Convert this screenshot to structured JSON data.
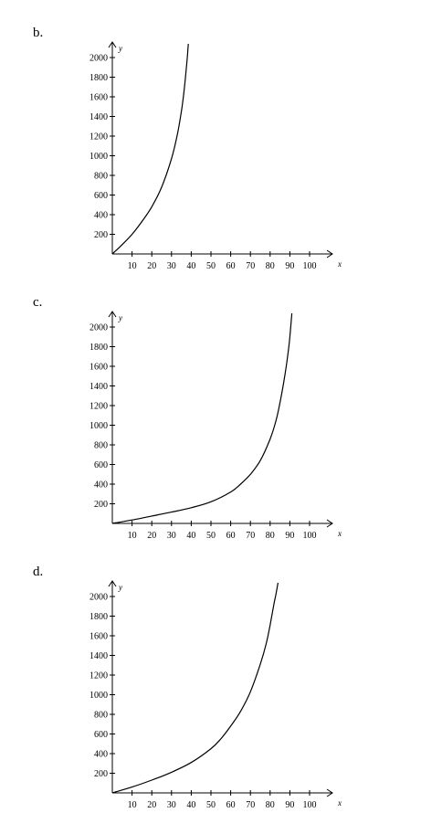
{
  "chart_data": [
    {
      "label": "b.",
      "type": "line",
      "xlabel": "x",
      "ylabel": "y",
      "xlim": [
        0,
        110
      ],
      "ylim": [
        0,
        2000
      ],
      "x_ticks": [
        10,
        20,
        30,
        40,
        50,
        60,
        70,
        80,
        90,
        100
      ],
      "y_ticks": [
        200,
        400,
        600,
        800,
        1000,
        1200,
        1400,
        1600,
        1800,
        2000
      ],
      "grid": false,
      "series": [
        {
          "x": [
            0,
            5,
            10,
            15,
            20,
            25,
            30,
            33,
            35,
            36,
            37,
            38,
            38.5
          ],
          "y": [
            0,
            95,
            200,
            330,
            480,
            680,
            970,
            1220,
            1450,
            1600,
            1780,
            2000,
            2140
          ]
        }
      ]
    },
    {
      "label": "c.",
      "type": "line",
      "xlabel": "x",
      "ylabel": "y",
      "xlim": [
        0,
        110
      ],
      "ylim": [
        0,
        2000
      ],
      "x_ticks": [
        10,
        20,
        30,
        40,
        50,
        60,
        70,
        80,
        90,
        100
      ],
      "y_ticks": [
        200,
        400,
        600,
        800,
        1000,
        1200,
        1400,
        1600,
        1800,
        2000
      ],
      "grid": false,
      "series": [
        {
          "x": [
            0,
            10,
            20,
            30,
            40,
            50,
            60,
            65,
            70,
            75,
            80,
            83,
            85,
            87,
            89,
            90,
            91
          ],
          "y": [
            0,
            35,
            75,
            115,
            160,
            220,
            320,
            400,
            500,
            640,
            860,
            1050,
            1230,
            1450,
            1720,
            1900,
            2140
          ]
        }
      ]
    },
    {
      "label": "d.",
      "type": "line",
      "xlabel": "x",
      "ylabel": "y",
      "xlim": [
        0,
        110
      ],
      "ylim": [
        0,
        2000
      ],
      "x_ticks": [
        10,
        20,
        30,
        40,
        50,
        60,
        70,
        80,
        90,
        100
      ],
      "y_ticks": [
        200,
        400,
        600,
        800,
        1000,
        1200,
        1400,
        1600,
        1800,
        2000
      ],
      "grid": false,
      "series": [
        {
          "x": [
            0,
            10,
            20,
            30,
            40,
            50,
            55,
            60,
            65,
            70,
            75,
            78,
            80,
            82,
            83,
            84
          ],
          "y": [
            0,
            60,
            130,
            210,
            310,
            450,
            550,
            680,
            830,
            1030,
            1310,
            1520,
            1710,
            1930,
            2030,
            2140
          ]
        }
      ]
    }
  ]
}
